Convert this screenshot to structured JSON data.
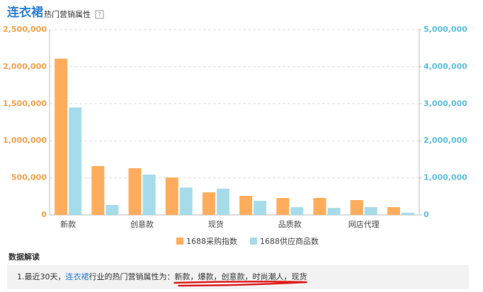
{
  "chart_data": {
    "type": "bar",
    "title": "连衣裙",
    "subtitle": "热门营销属性",
    "help_icon": "?",
    "categories": [
      "新款",
      null,
      "创意款",
      null,
      "现货",
      null,
      "品质款",
      null,
      "网店代理",
      null
    ],
    "series": [
      {
        "name": "1688采购指数",
        "color": "#ffad5c",
        "values": [
          2110000,
          660000,
          630000,
          505000,
          305000,
          258000,
          229000,
          230000,
          200000,
          105000
        ]
      },
      {
        "name": "1688供应商品数",
        "color": "#a6dcea",
        "axis": "y2",
        "values": [
          2900000,
          270000,
          1090000,
          740000,
          710000,
          380000,
          210000,
          190000,
          210000,
          60000
        ]
      }
    ],
    "ylim": [
      0,
      2500000
    ],
    "yticks": [
      0,
      {
        "value": 500000,
        "label": "500,000"
      },
      {
        "value": 1000000,
        "label": "1,000,000"
      },
      {
        "value": 1500000,
        "label": "1,500,000"
      },
      {
        "value": 2000000,
        "label": "2,000,000"
      },
      {
        "value": 2500000,
        "label": "2,500,000"
      }
    ],
    "y2lim": [
      0,
      5000000
    ],
    "y2ticks": [
      0,
      {
        "value": 1000000,
        "label": "1,000,000"
      },
      {
        "value": 2000000,
        "label": "2,000,000"
      },
      {
        "value": 3000000,
        "label": "3,000,000"
      },
      {
        "value": 4000000,
        "label": "4,000,000"
      },
      {
        "value": 5000000,
        "label": "5,000,000"
      }
    ],
    "ytick_color": "#f5a04a",
    "y2tick_color": "#5bbfe0",
    "grid": true,
    "legend": "bottom"
  },
  "analysis": {
    "heading": "数据解读",
    "prefix": "1.最近30天，",
    "keyword": "连衣裙",
    "middle": "行业的热门营销属性为：",
    "attributes": "新款，爆款，创意款，时尚潮人，现货"
  }
}
